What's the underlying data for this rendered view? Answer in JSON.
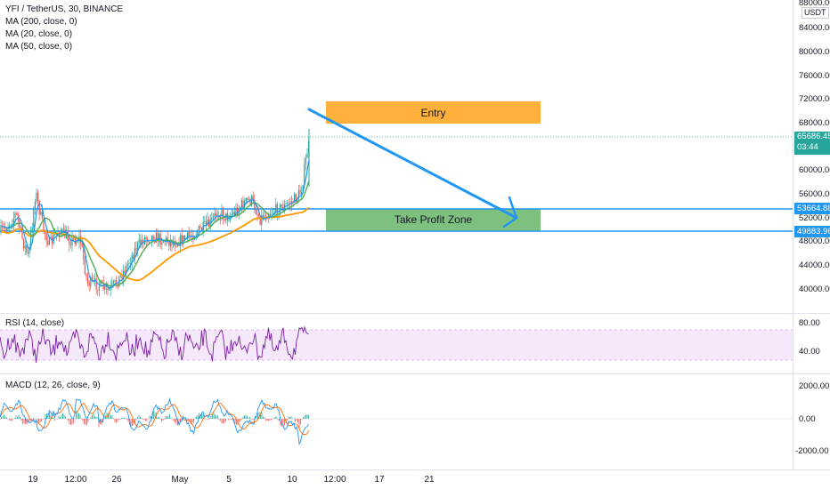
{
  "header": {
    "symbol_line": "YFI / TetherUS, 30, BINANCE",
    "indicators": [
      "MA (200, close, 0)",
      "MA (20, close, 0)",
      "MA (50, close, 0)"
    ]
  },
  "rsi_label": "RSI (14, close)",
  "macd_label": "MACD (12, 26, close, 9)",
  "currency_label": "USDT",
  "price_axis": {
    "top_label": "88000.00",
    "labels": [
      "84000.00",
      "80000.00",
      "76000.00",
      "72000.00",
      "68000.00",
      "60000.00",
      "56000.00",
      "52000.00",
      "48000.00",
      "44000.00",
      "40000.00"
    ]
  },
  "price_badges": [
    {
      "value": "65686.45",
      "sub": "03:44",
      "color": "#26a69a"
    },
    {
      "value": "53664.88",
      "color": "#2196f3"
    },
    {
      "value": "49883.96",
      "color": "#2196f3"
    }
  ],
  "rsi_axis": [
    "80.00",
    "40.00"
  ],
  "macd_axis": [
    "2000.00",
    "0.00",
    "-2000.00"
  ],
  "time_axis": [
    "19",
    "12:00",
    "26",
    "May",
    "5",
    "10",
    "12:00",
    "17",
    "21"
  ],
  "zones": {
    "entry": {
      "label": "Entry",
      "color": "#ffb13b"
    },
    "take_profit": {
      "label": "Take Profit Zone",
      "color": "#7ec17e"
    }
  },
  "colors": {
    "up": "#26a69a",
    "down": "#ef5350",
    "ma200": "#ff9800",
    "ma20": "#2196f3",
    "ma50": "#4caf50",
    "rsi": "#7b1fa2",
    "macd": "#2196f3",
    "signal": "#ff6d00",
    "hline": "#2196f3",
    "arrow": "#2196f3"
  },
  "chart_data": [
    {
      "type": "candlestick",
      "title": "YFI / TetherUS, 30, BINANCE",
      "yunit": "USDT",
      "horizontal_lines": [
        53664.88,
        49883.96
      ],
      "last_price": 65686.45
    },
    {
      "type": "line",
      "title": "RSI (14, close)",
      "band": [
        30,
        70
      ]
    },
    {
      "type": "line",
      "title": "MACD (12, 26, close, 9)"
    }
  ]
}
